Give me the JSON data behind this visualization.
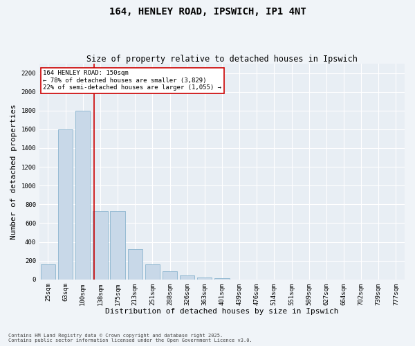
{
  "title1": "164, HENLEY ROAD, IPSWICH, IP1 4NT",
  "title2": "Size of property relative to detached houses in Ipswich",
  "xlabel": "Distribution of detached houses by size in Ipswich",
  "ylabel": "Number of detached properties",
  "categories": [
    "25sqm",
    "63sqm",
    "100sqm",
    "138sqm",
    "175sqm",
    "213sqm",
    "251sqm",
    "288sqm",
    "326sqm",
    "363sqm",
    "401sqm",
    "439sqm",
    "476sqm",
    "514sqm",
    "551sqm",
    "589sqm",
    "627sqm",
    "664sqm",
    "702sqm",
    "739sqm",
    "777sqm"
  ],
  "values": [
    160,
    1600,
    1800,
    730,
    730,
    320,
    160,
    85,
    45,
    20,
    15,
    0,
    0,
    0,
    0,
    0,
    0,
    0,
    0,
    0,
    0
  ],
  "bar_color": "#c8d8e8",
  "bar_edge_color": "#7aaac8",
  "vline_color": "#cc0000",
  "vline_pos": 2.65,
  "annotation_text": "164 HENLEY ROAD: 150sqm\n← 78% of detached houses are smaller (3,829)\n22% of semi-detached houses are larger (1,055) →",
  "annotation_box_color": "#ffffff",
  "annotation_box_edge": "#cc0000",
  "ylim": [
    0,
    2300
  ],
  "yticks": [
    0,
    200,
    400,
    600,
    800,
    1000,
    1200,
    1400,
    1600,
    1800,
    2000,
    2200
  ],
  "bg_color": "#e8eef4",
  "plot_bg": "#e8eef4",
  "grid_color": "#ffffff",
  "footer1": "Contains HM Land Registry data © Crown copyright and database right 2025.",
  "footer2": "Contains public sector information licensed under the Open Government Licence v3.0.",
  "fig_bg": "#f0f4f8",
  "title_fontsize": 10,
  "subtitle_fontsize": 8.5,
  "tick_fontsize": 6.5,
  "ylabel_fontsize": 8,
  "xlabel_fontsize": 8,
  "annot_fontsize": 6.5,
  "footer_fontsize": 5
}
